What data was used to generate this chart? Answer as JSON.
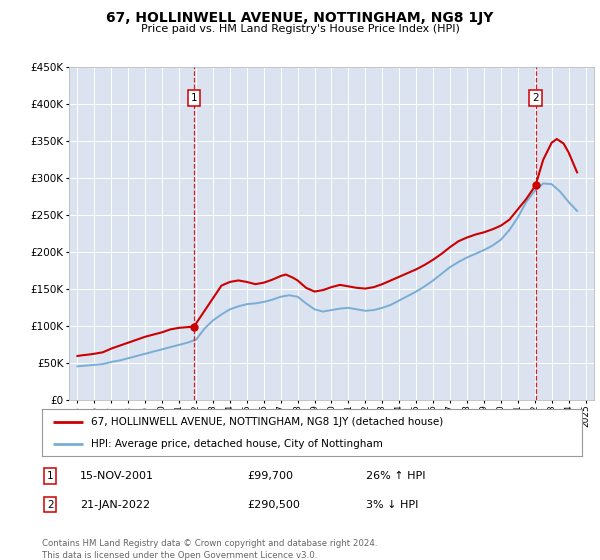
{
  "title": "67, HOLLINWELL AVENUE, NOTTINGHAM, NG8 1JY",
  "subtitle": "Price paid vs. HM Land Registry's House Price Index (HPI)",
  "footnote": "Contains HM Land Registry data © Crown copyright and database right 2024.\nThis data is licensed under the Open Government Licence v3.0.",
  "legend_line1": "67, HOLLINWELL AVENUE, NOTTINGHAM, NG8 1JY (detached house)",
  "legend_line2": "HPI: Average price, detached house, City of Nottingham",
  "annotation1": {
    "label": "1",
    "date": "15-NOV-2001",
    "price": "£99,700",
    "hpi": "26% ↑ HPI",
    "x_year": 2001.88
  },
  "annotation2": {
    "label": "2",
    "date": "21-JAN-2022",
    "price": "£290,500",
    "hpi": "3% ↓ HPI",
    "x_year": 2022.05
  },
  "bg_color": "#dce3f0",
  "red_color": "#cc0000",
  "blue_color": "#7aadd4",
  "ylim": [
    0,
    450000
  ],
  "xlim_start": 1994.5,
  "xlim_end": 2025.5,
  "red_line": {
    "years": [
      1995.0,
      1995.3,
      1995.7,
      1996.0,
      1996.5,
      1997.0,
      1997.5,
      1998.0,
      1998.5,
      1999.0,
      1999.5,
      2000.0,
      2000.5,
      2001.0,
      2001.88,
      2003.5,
      2004.0,
      2004.5,
      2005.0,
      2005.5,
      2006.0,
      2006.5,
      2007.0,
      2007.3,
      2007.7,
      2008.0,
      2008.5,
      2009.0,
      2009.5,
      2010.0,
      2010.5,
      2011.0,
      2011.5,
      2012.0,
      2012.5,
      2013.0,
      2013.5,
      2014.0,
      2014.5,
      2015.0,
      2015.5,
      2016.0,
      2016.5,
      2017.0,
      2017.5,
      2018.0,
      2018.5,
      2019.0,
      2019.5,
      2020.0,
      2020.5,
      2021.0,
      2021.5,
      2022.05,
      2022.5,
      2023.0,
      2023.3,
      2023.7,
      2024.0,
      2024.5
    ],
    "values": [
      60000,
      61000,
      62000,
      63000,
      65000,
      70000,
      74000,
      78000,
      82000,
      86000,
      89000,
      92000,
      96000,
      98000,
      99700,
      155000,
      160000,
      162000,
      160000,
      157000,
      159000,
      163000,
      168000,
      170000,
      166000,
      162000,
      152000,
      147000,
      149000,
      153000,
      156000,
      154000,
      152000,
      151000,
      153000,
      157000,
      162000,
      167000,
      172000,
      177000,
      183000,
      190000,
      198000,
      207000,
      215000,
      220000,
      224000,
      227000,
      231000,
      236000,
      244000,
      258000,
      272000,
      290500,
      325000,
      348000,
      353000,
      347000,
      335000,
      308000
    ]
  },
  "blue_line": {
    "years": [
      1995.0,
      1995.5,
      1996.0,
      1996.5,
      1997.0,
      1997.5,
      1998.0,
      1998.5,
      1999.0,
      1999.5,
      2000.0,
      2000.5,
      2001.0,
      2001.5,
      2002.0,
      2002.5,
      2003.0,
      2003.5,
      2004.0,
      2004.5,
      2005.0,
      2005.5,
      2006.0,
      2006.5,
      2007.0,
      2007.5,
      2008.0,
      2008.5,
      2009.0,
      2009.5,
      2010.0,
      2010.5,
      2011.0,
      2011.5,
      2012.0,
      2012.5,
      2013.0,
      2013.5,
      2014.0,
      2014.5,
      2015.0,
      2015.5,
      2016.0,
      2016.5,
      2017.0,
      2017.5,
      2018.0,
      2018.5,
      2019.0,
      2019.5,
      2020.0,
      2020.5,
      2021.0,
      2021.5,
      2022.0,
      2022.5,
      2023.0,
      2023.5,
      2024.0,
      2024.5
    ],
    "values": [
      46000,
      47000,
      48000,
      49000,
      52000,
      54000,
      57000,
      60000,
      63000,
      66000,
      69000,
      72000,
      75000,
      78000,
      82000,
      97000,
      108000,
      116000,
      123000,
      127000,
      130000,
      131000,
      133000,
      136000,
      140000,
      142000,
      140000,
      131000,
      123000,
      120000,
      122000,
      124000,
      125000,
      123000,
      121000,
      122000,
      125000,
      129000,
      135000,
      141000,
      147000,
      154000,
      162000,
      171000,
      180000,
      187000,
      193000,
      198000,
      203000,
      209000,
      217000,
      230000,
      247000,
      268000,
      283000,
      293000,
      292000,
      282000,
      268000,
      256000
    ]
  }
}
